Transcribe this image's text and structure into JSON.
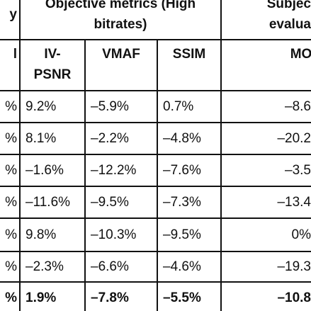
{
  "table": {
    "group_headers": [
      [
        "y"
      ],
      [
        "Objective metrics (High",
        "bitrates)"
      ],
      [
        "Subjec",
        "evalua"
      ]
    ],
    "column_headers": [
      [
        "l"
      ],
      [
        "IV-",
        "PSNR"
      ],
      [
        "VMAF"
      ],
      [
        "SSIM"
      ],
      [
        "MOS"
      ]
    ],
    "rows": [
      [
        "%",
        "9.2%",
        "–5.9%",
        "0.7%",
        "–8.6"
      ],
      [
        "%",
        "8.1%",
        "–2.2%",
        "–4.8%",
        "–20.2"
      ],
      [
        "%",
        "–1.6%",
        "–12.2%",
        "–7.6%",
        "–3.5"
      ],
      [
        "%",
        "–11.6%",
        "–9.5%",
        "–7.3%",
        "–13.4"
      ],
      [
        "%",
        "9.8%",
        "–10.3%",
        "–9.5%",
        "0%"
      ],
      [
        "%",
        "–2.3%",
        "–6.6%",
        "–4.6%",
        "–19.3"
      ],
      [
        "%",
        "1.9%",
        "–7.8%",
        "–5.5%",
        "–10.8"
      ]
    ]
  }
}
